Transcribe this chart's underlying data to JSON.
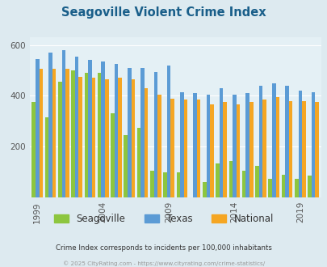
{
  "title": "Seagoville Violent Crime Index",
  "title_color": "#1a5f8a",
  "subtitle": "Crime Index corresponds to incidents per 100,000 inhabitants",
  "footer": "© 2025 CityRating.com - https://www.cityrating.com/crime-statistics/",
  "years": [
    1999,
    2000,
    2001,
    2002,
    2003,
    2004,
    2005,
    2006,
    2007,
    2008,
    2009,
    2010,
    2011,
    2012,
    2013,
    2014,
    2015,
    2016,
    2017,
    2018,
    2019,
    2020
  ],
  "seagoville": [
    375,
    315,
    455,
    500,
    490,
    490,
    330,
    245,
    275,
    105,
    100,
    100,
    0,
    60,
    135,
    145,
    105,
    125,
    75,
    90,
    75,
    85
  ],
  "texas": [
    545,
    570,
    580,
    555,
    540,
    535,
    525,
    510,
    510,
    495,
    520,
    415,
    410,
    405,
    430,
    405,
    410,
    440,
    450,
    440,
    420,
    415
  ],
  "national": [
    505,
    505,
    505,
    475,
    470,
    465,
    470,
    465,
    430,
    405,
    390,
    385,
    385,
    365,
    375,
    365,
    375,
    385,
    395,
    380,
    380,
    375
  ],
  "seagoville_color": "#8dc63f",
  "texas_color": "#5b9bd5",
  "national_color": "#f5a623",
  "bg_color": "#ddeaf0",
  "plot_bg_color": "#e4f0f5",
  "ylim": [
    0,
    630
  ],
  "yticks": [
    200,
    400,
    600
  ],
  "xtick_years": [
    1999,
    2004,
    2009,
    2014,
    2019
  ],
  "legend_labels": [
    "Seagoville",
    "Texas",
    "National"
  ],
  "bar_width": 0.28
}
